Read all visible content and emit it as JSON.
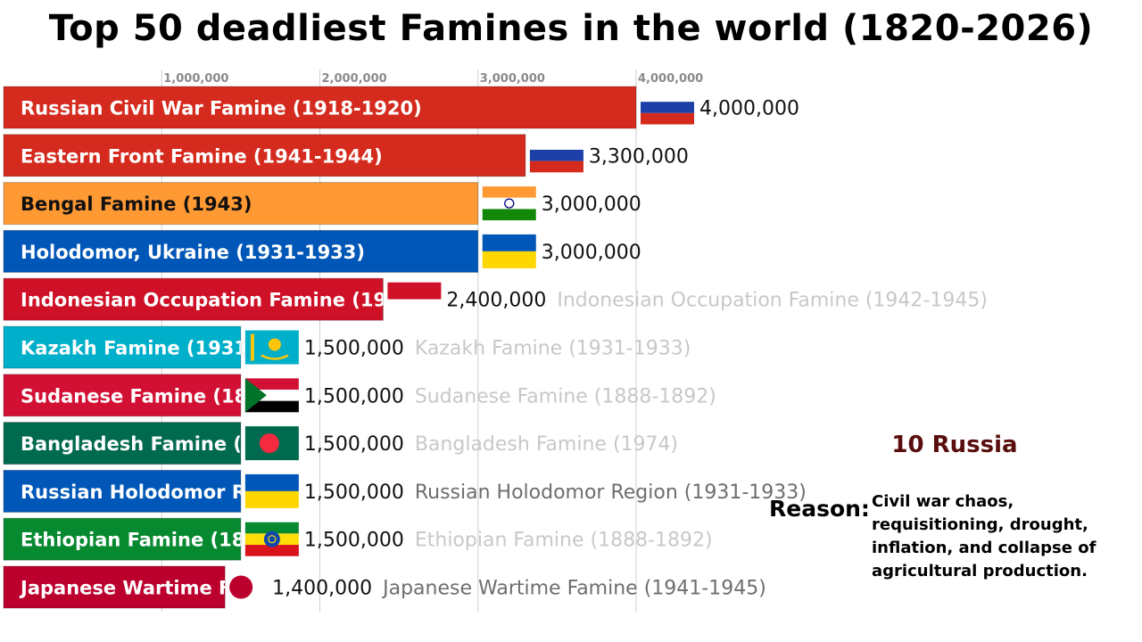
{
  "title": "Top 50 deadliest Famines in the world (1820-2026)",
  "chart_data": {
    "type": "bar",
    "orientation": "horizontal",
    "title": "Top 50 deadliest Famines in the world (1820-2026)",
    "xlim": [
      0,
      4000000
    ],
    "tick_values": [
      1000000,
      2000000,
      3000000,
      4000000
    ],
    "tick_labels": [
      "1,000,000",
      "2,000,000",
      "3,000,000",
      "4,000,000"
    ],
    "grid": true,
    "categories": [
      "Russian Civil War Famine (1918-1920)",
      "Eastern Front Famine (1941-1944)",
      "Bengal Famine (1943)",
      "Holodomor, Ukraine (1931-1933)",
      "Indonesian Occupation Famine (1942-1945)",
      "Kazakh Famine (1931-1933)",
      "Sudanese Famine (1888-1892)",
      "Bangladesh Famine (1974)",
      "Russian Holodomor Region (1931-1933)",
      "Ethiopian Famine (1888-1892)",
      "Japanese Wartime Famine (1941-1945)"
    ],
    "values": [
      4000000,
      3300000,
      3000000,
      3000000,
      2400000,
      1500000,
      1500000,
      1500000,
      1500000,
      1500000,
      1400000
    ],
    "value_labels": [
      "4,000,000",
      "3,300,000",
      "3,000,000",
      "3,000,000",
      "2,400,000",
      "1,500,000",
      "1,500,000",
      "1,500,000",
      "1,500,000",
      "1,500,000",
      "1,400,000"
    ],
    "side_labels": [
      "",
      "",
      "",
      "",
      "Indonesian Occupation Famine (1942-1945)",
      "Kazakh Famine (1931-1933)",
      "Sudanese Famine (1888-1892)",
      "Bangladesh Famine (1974)",
      "Russian Holodomor Region (1931-1933)",
      "Ethiopian Famine (1888-1892)",
      "Japanese Wartime Famine (1941-1945)"
    ],
    "side_label_emphasis": [
      0,
      0,
      0,
      0,
      0,
      0,
      0,
      0,
      1,
      0,
      1
    ],
    "bar_colors": [
      "#d52b1e",
      "#d52b1e",
      "#ff9933",
      "#0057b7",
      "#ce1126",
      "#00afca",
      "#d21034",
      "#006a4e",
      "#0057b7",
      "#078930",
      "#bc002d"
    ],
    "label_colors": [
      "#ffffff",
      "#ffffff",
      "#111111",
      "#ffffff",
      "#ffffff",
      "#ffffff",
      "#ffffff",
      "#ffffff",
      "#ffffff",
      "#ffffff",
      "#ffffff"
    ],
    "flags": [
      "russia",
      "russia",
      "india",
      "ukraine",
      "indonesia",
      "kazakhstan",
      "sudan",
      "bangladesh",
      "ukraine",
      "ethiopia",
      "japan"
    ]
  },
  "year_display": "10 Russia",
  "reason": {
    "label": "Reason:",
    "text": "Civil war chaos, requisitioning, drought, inflation, and collapse of agricultural production."
  }
}
